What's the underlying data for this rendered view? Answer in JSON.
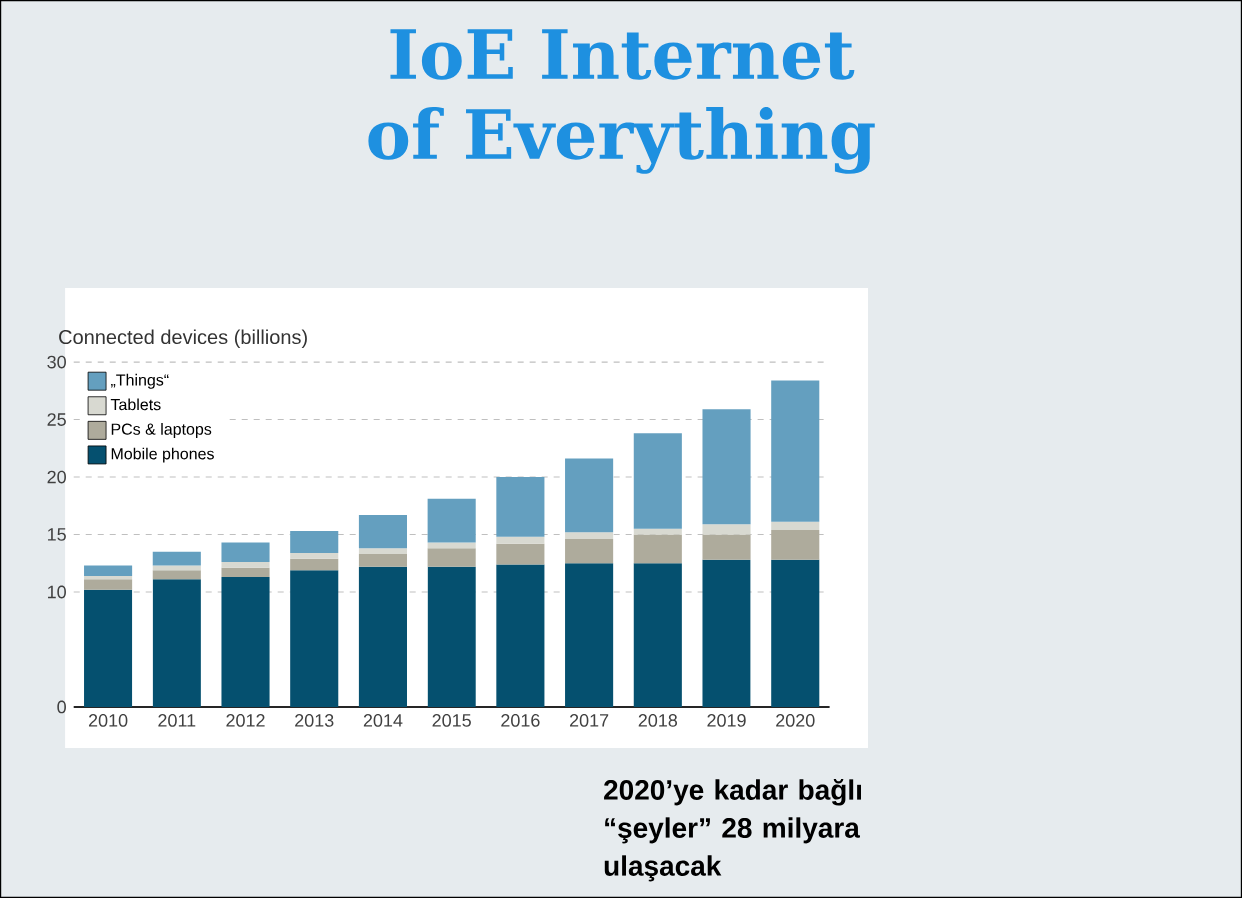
{
  "chart_data": {
    "type": "bar",
    "stacked": true,
    "title": "IoE Internet of Everything",
    "ylabel": "Connected devices (billions)",
    "categories": [
      "2010",
      "2011",
      "2012",
      "2013",
      "2014",
      "2015",
      "2016",
      "2017",
      "2018",
      "2019",
      "2020"
    ],
    "series": [
      {
        "name": "Mobile phones",
        "color": "#05506f",
        "values": [
          10.2,
          11.1,
          11.3,
          11.9,
          12.2,
          12.2,
          12.4,
          12.5,
          12.5,
          12.8,
          12.8
        ]
      },
      {
        "name": "PCs & laptops",
        "color": "#aeab9c",
        "values": [
          0.9,
          0.8,
          0.8,
          1.0,
          1.1,
          1.6,
          1.8,
          2.1,
          2.5,
          2.2,
          2.6
        ]
      },
      {
        "name": "Tablets",
        "color": "#d8d9d1",
        "values": [
          0.3,
          0.4,
          0.5,
          0.5,
          0.5,
          0.5,
          0.6,
          0.6,
          0.5,
          0.9,
          0.7
        ]
      },
      {
        "name": "„Things“",
        "color": "#649fbf",
        "values": [
          0.9,
          1.2,
          1.7,
          1.9,
          2.9,
          3.8,
          5.2,
          6.4,
          8.3,
          10.0,
          12.3
        ]
      }
    ],
    "ylim": [
      0,
      30
    ],
    "yticks": [
      0,
      10,
      15,
      20,
      25,
      30
    ],
    "grid": "y",
    "legend": "top left",
    "annotations": [
      "2020’ye kadar bağlı “şeyler” 28 milyara ulaşacak"
    ]
  }
}
